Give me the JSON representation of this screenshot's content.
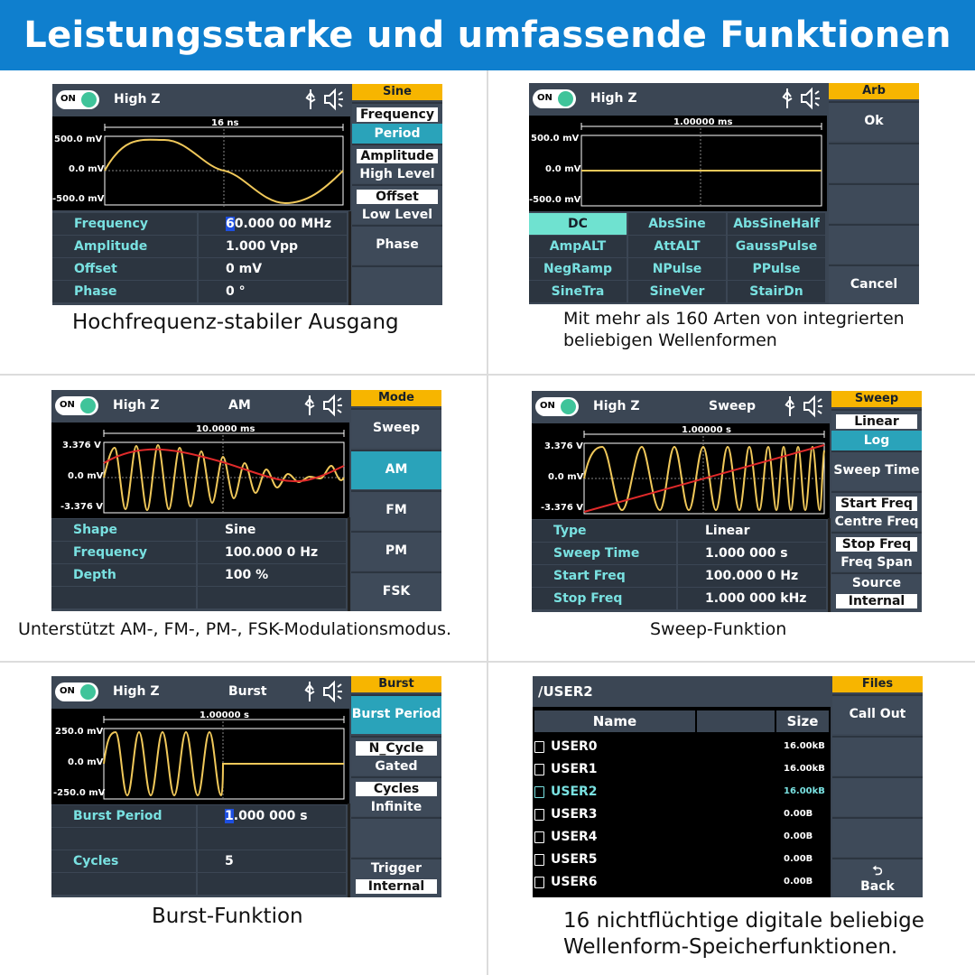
{
  "banner": {
    "title": "Leistungsstarke und umfassende Funktionen"
  },
  "common": {
    "on": "ON",
    "highz": "High Z"
  },
  "sine": {
    "menu_title": "Sine",
    "span": "16 ns",
    "ylabels": [
      "500.0 mV",
      "0.0 mV",
      "-500.0 mV"
    ],
    "menu": {
      "freq": "Frequency",
      "period": "Period",
      "amp": "Amplitude",
      "high": "High Level",
      "offset": "Offset",
      "low": "Low Level",
      "phase": "Phase"
    },
    "rows": [
      {
        "l": "Frequency",
        "cur": "6",
        "v": "0.000 00 MHz"
      },
      {
        "l": "Amplitude",
        "v": "1.000 Vpp"
      },
      {
        "l": "Offset",
        "v": "0 mV"
      },
      {
        "l": "Phase",
        "v": "0 °"
      }
    ],
    "caption": "Hochfrequenz-stabiler Ausgang"
  },
  "arb": {
    "menu_title": "Arb",
    "span": "1.00000 ms",
    "ylabels": [
      "500.0 mV",
      "0.0 mV",
      "-500.0 mV"
    ],
    "ok": "Ok",
    "cancel": "Cancel",
    "grid": [
      "DC",
      "AbsSine",
      "AbsSineHalf",
      "AmpALT",
      "AttALT",
      "GaussPulse",
      "NegRamp",
      "NPulse",
      "PPulse",
      "SineTra",
      "SineVer",
      "StairDn"
    ],
    "caption1": "Mit mehr als 160 Arten von integrierten",
    "caption2": "beliebigen Wellenformen"
  },
  "am": {
    "mode": "AM",
    "menu_title": "Mode",
    "span": "10.0000 ms",
    "ylabels": [
      "3.376 V",
      "0.0 mV",
      "-3.376 V"
    ],
    "menu": [
      "Sweep",
      "AM",
      "FM",
      "PM",
      "FSK"
    ],
    "rows": [
      {
        "l": "Shape",
        "v": "Sine"
      },
      {
        "l": "Frequency",
        "v": "100.000 0 Hz"
      },
      {
        "l": "Depth",
        "v": "100 %"
      }
    ],
    "caption": "Unterstützt AM-, FM-, PM-, FSK-Modulationsmodus."
  },
  "sweep": {
    "mode": "Sweep",
    "menu_title": "Sweep",
    "span": "1.00000 s",
    "ylabels": [
      "3.376 V",
      "0.0 mV",
      "-3.376 V"
    ],
    "menu": {
      "linear": "Linear",
      "log": "Log",
      "time": "Sweep Time",
      "start": "Start Freq",
      "centre": "Centre Freq",
      "stop": "Stop Freq",
      "fspan": "Freq Span",
      "source": "Source",
      "internal": "Internal"
    },
    "rows": [
      {
        "l": "Type",
        "v": "Linear"
      },
      {
        "l": "Sweep Time",
        "v": "1.000 000 s"
      },
      {
        "l": "Start Freq",
        "v": "100.000 0 Hz"
      },
      {
        "l": "Stop Freq",
        "v": "1.000 000 kHz"
      }
    ],
    "caption": "Sweep-Funktion"
  },
  "burst": {
    "mode": "Burst",
    "menu_title": "Burst",
    "span": "1.00000 s",
    "ylabels": [
      "250.0 mV",
      "0.0 mV",
      "-250.0 mV"
    ],
    "menu": {
      "period": "Burst Period",
      "ncycle": "N_Cycle",
      "gated": "Gated",
      "cycles": "Cycles",
      "infinite": "Infinite",
      "trigger": "Trigger",
      "internal": "Internal"
    },
    "rows": [
      {
        "l": "Burst Period",
        "cur": "1",
        "v": ".000 000 s"
      },
      {
        "l": "",
        "v": ""
      },
      {
        "l": "Cycles",
        "v": "5"
      }
    ],
    "caption": "Burst-Funktion"
  },
  "files": {
    "path": "/USER2",
    "menu_title": "Files",
    "callout": "Call Out",
    "back": "Back",
    "col_name": "Name",
    "col_size": "Size",
    "items": [
      {
        "n": "USER0",
        "s": "16.00kB"
      },
      {
        "n": "USER1",
        "s": "16.00kB"
      },
      {
        "n": "USER2",
        "s": "16.00kB"
      },
      {
        "n": "USER3",
        "s": "0.00B"
      },
      {
        "n": "USER4",
        "s": "0.00B"
      },
      {
        "n": "USER5",
        "s": "0.00B"
      },
      {
        "n": "USER6",
        "s": "0.00B"
      }
    ],
    "caption1": "16 nichtflüchtige digitale beliebige",
    "caption2": "Wellenform-Speicherfunktionen."
  },
  "colors": {
    "accent": "#f7b500",
    "cyan": "#79e1e1",
    "wave": "#f0c85a",
    "red": "#e02a2a",
    "banner": "#0f7fce"
  }
}
